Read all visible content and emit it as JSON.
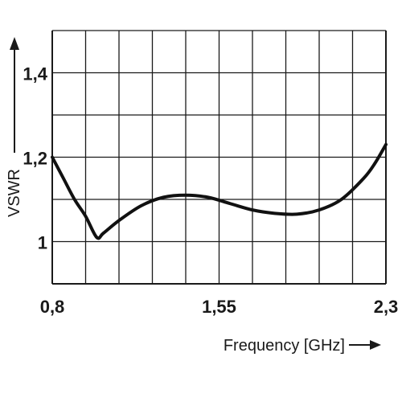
{
  "chart_data": {
    "type": "line",
    "xlabel": "Frequency [GHz]",
    "ylabel": "VSWR",
    "xlim": [
      0.8,
      2.3
    ],
    "ylim": [
      0.9,
      1.5
    ],
    "x_ticks": [
      {
        "value": 0.8,
        "label": "0,8"
      },
      {
        "value": 1.55,
        "label": "1,55"
      },
      {
        "value": 2.3,
        "label": "2,3"
      }
    ],
    "y_ticks": [
      {
        "value": 1.0,
        "label": "1"
      },
      {
        "value": 1.2,
        "label": "1,2"
      },
      {
        "value": 1.4,
        "label": "1,4"
      }
    ],
    "grid": true,
    "grid_x_step": 0.15,
    "grid_y_step": 0.1,
    "line_color": "#111111",
    "grid_color": "#1a1a1a",
    "series": [
      {
        "x": [
          0.8,
          0.85,
          0.9,
          0.95,
          1.0,
          1.03,
          1.1,
          1.2,
          1.3,
          1.4,
          1.5,
          1.6,
          1.7,
          1.8,
          1.9,
          2.0,
          2.1,
          2.2,
          2.25,
          2.3
        ],
        "values": [
          1.2,
          1.15,
          1.1,
          1.06,
          1.01,
          1.02,
          1.05,
          1.085,
          1.105,
          1.11,
          1.105,
          1.09,
          1.075,
          1.067,
          1.065,
          1.075,
          1.1,
          1.15,
          1.185,
          1.23
        ]
      }
    ]
  }
}
